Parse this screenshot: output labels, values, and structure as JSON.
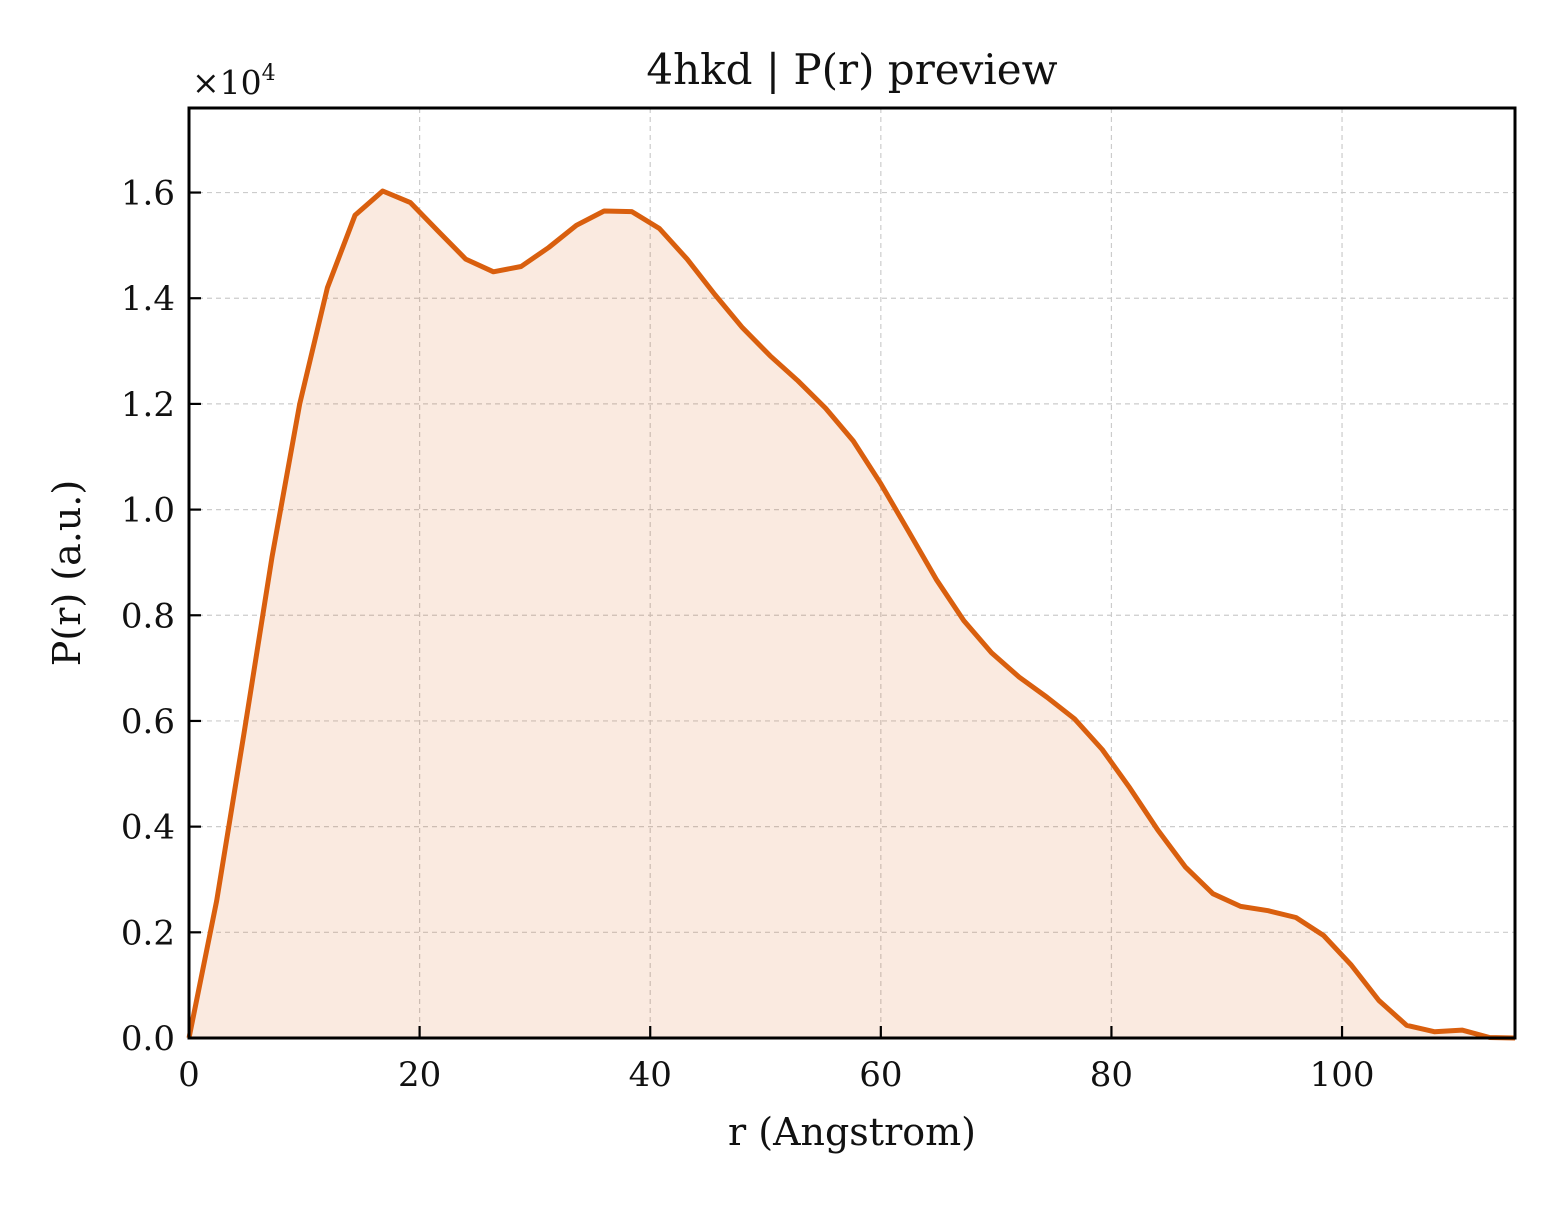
{
  "chart_data": {
    "type": "area",
    "title": "4hkd | P(r) preview",
    "xlabel": "r (Angstrom)",
    "ylabel": "P(r) (a.u.)",
    "y_multiplier_label": "×10",
    "y_multiplier_exponent": "4",
    "xlim": [
      0,
      115
    ],
    "ylim": [
      0,
      17600
    ],
    "x_ticks": [
      0,
      20,
      40,
      60,
      80,
      100
    ],
    "y_ticks": [
      0,
      2000,
      4000,
      6000,
      8000,
      10000,
      12000,
      14000,
      16000
    ],
    "y_tick_labels": [
      "0.0",
      "0.2",
      "0.4",
      "0.6",
      "0.8",
      "1.0",
      "1.2",
      "1.4",
      "1.6"
    ],
    "grid": true,
    "legend": "none",
    "colors": {
      "line": "#d95f0e",
      "fill": "#d95f0e",
      "fill_opacity": 0.13,
      "grid": "#cccccc"
    },
    "series": [
      {
        "x": [
          0,
          2.4,
          4.8,
          7.2,
          9.6,
          12.0,
          14.4,
          16.8,
          19.2,
          21.6,
          24.0,
          26.4,
          28.8,
          31.2,
          33.6,
          36.0,
          38.4,
          40.8,
          43.2,
          45.6,
          48.0,
          50.4,
          52.8,
          55.2,
          57.6,
          60.0,
          62.4,
          64.8,
          67.2,
          69.6,
          72.0,
          74.4,
          76.8,
          79.2,
          81.6,
          84.0,
          86.4,
          88.8,
          91.2,
          93.6,
          96.0,
          98.4,
          100.8,
          103.2,
          105.6,
          108.0,
          110.4,
          112.8,
          115.0
        ],
        "y": [
          0,
          2600,
          5800,
          9100,
          12000,
          14200,
          15570,
          16030,
          15810,
          15270,
          14740,
          14500,
          14600,
          14960,
          15380,
          15650,
          15640,
          15320,
          14740,
          14070,
          13440,
          12910,
          12440,
          11920,
          11300,
          10490,
          9590,
          8680,
          7900,
          7290,
          6830,
          6450,
          6040,
          5460,
          4730,
          3940,
          3240,
          2730,
          2490,
          2410,
          2280,
          1940,
          1380,
          710,
          240,
          120,
          150,
          10,
          0
        ]
      }
    ]
  }
}
